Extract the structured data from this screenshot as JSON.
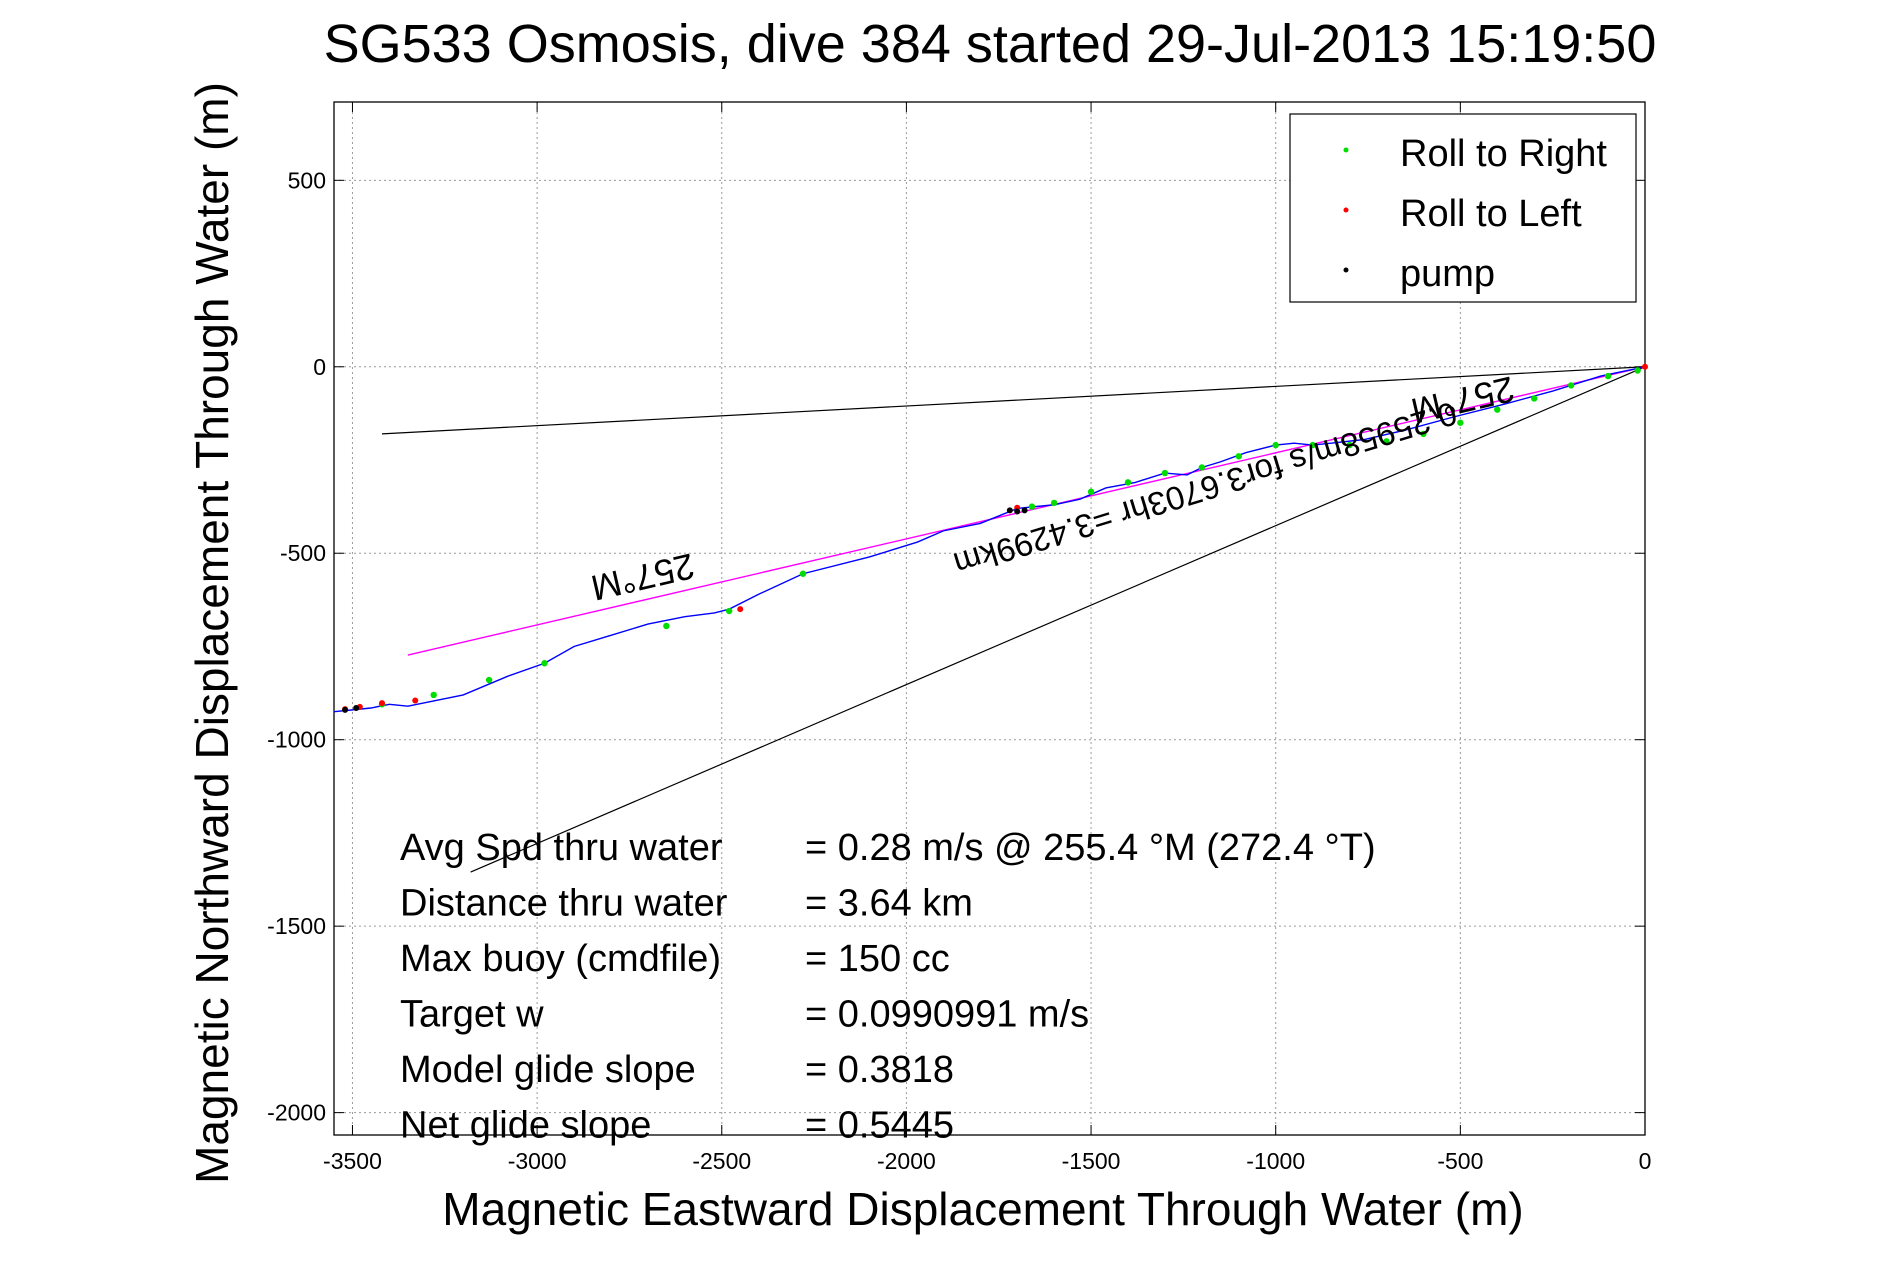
{
  "chart_data": {
    "type": "line",
    "title": "SG533 Osmosis, dive 384 started 29-Jul-2013 15:19:50",
    "xlabel": "Magnetic Eastward Displacement Through Water (m)",
    "ylabel": "Magnetic Northward Displacement Through Water (m)",
    "xlim": [
      -3550,
      0
    ],
    "ylim": [
      -2060,
      710
    ],
    "xticks": [
      -3500,
      -3000,
      -2500,
      -2000,
      -1500,
      -1000,
      -500,
      0
    ],
    "yticks": [
      500,
      0,
      -500,
      -1000,
      -1500,
      -2000
    ],
    "grid": true,
    "legend_position": "top-right",
    "legend": [
      {
        "label": "Roll to Right",
        "color": "#00dd00"
      },
      {
        "label": "Roll to Left",
        "color": "#ff0000"
      },
      {
        "label": "pump",
        "color": "#000000"
      }
    ],
    "track": {
      "color": "#0000ff",
      "x": [
        0,
        -120,
        -250,
        -380,
        -520,
        -650,
        -760,
        -850,
        -900,
        -950,
        -1000,
        -1080,
        -1150,
        -1200,
        -1240,
        -1300,
        -1380,
        -1460,
        -1530,
        -1600,
        -1700,
        -1800,
        -1900,
        -1970,
        -2100,
        -2280,
        -2400,
        -2480,
        -2520,
        -2600,
        -2700,
        -2800,
        -2900,
        -2980,
        -3080,
        -3200,
        -3300,
        -3350,
        -3400,
        -3450,
        -3500,
        -3550
      ],
      "y": [
        0,
        -25,
        -65,
        -100,
        -135,
        -170,
        -195,
        -205,
        -210,
        -205,
        -210,
        -230,
        -255,
        -270,
        -290,
        -285,
        -310,
        -325,
        -355,
        -370,
        -380,
        -420,
        -440,
        -470,
        -510,
        -555,
        -610,
        -650,
        -660,
        -670,
        -690,
        -720,
        -750,
        -795,
        -830,
        -880,
        -900,
        -910,
        -905,
        -915,
        -920,
        -925
      ]
    },
    "roll_right": {
      "color": "#00dd00",
      "x": [
        -20,
        -100,
        -200,
        -300,
        -400,
        -500,
        -600,
        -700,
        -800,
        -900,
        -1000,
        -1100,
        -1200,
        -1300,
        -1400,
        -1500,
        -1600,
        -1660,
        -2280,
        -2480,
        -2650,
        -2980,
        -3130,
        -3280,
        -3420
      ],
      "y": [
        -10,
        -25,
        -50,
        -85,
        -115,
        -150,
        -180,
        -200,
        -210,
        -210,
        -210,
        -240,
        -270,
        -285,
        -310,
        -335,
        -365,
        -375,
        -555,
        -655,
        -695,
        -795,
        -840,
        -880,
        -905
      ]
    },
    "roll_left": {
      "color": "#ff0000",
      "x": [
        0,
        -1700,
        -2450,
        -3330,
        -3420,
        -3480,
        -3520
      ],
      "y": [
        0,
        -378,
        -650,
        -895,
        -902,
        -912,
        -918
      ]
    },
    "pump": {
      "color": "#000000",
      "x": [
        -1680,
        -1700,
        -1720,
        -3490,
        -3520
      ],
      "y": [
        -385,
        -388,
        -385,
        -915,
        -920
      ]
    },
    "heading_line": {
      "color": "#ff00ff",
      "x": [
        0,
        -3350
      ],
      "y": [
        0,
        -773
      ],
      "label": "257°M"
    },
    "reference_lines": [
      {
        "color": "#000000",
        "x": [
          0,
          -3420
        ],
        "y": [
          0,
          -180
        ],
        "label": "257°M"
      },
      {
        "color": "#000000",
        "x": [
          0,
          -3180
        ],
        "y": [
          0,
          -1355
        ],
        "label": "0.25958m/s for3.6703hr =3.4299km"
      }
    ],
    "annotations": [
      {
        "name": "Avg Spd thru water",
        "value": "=  0.28 m/s @ 255.4 °M (272.4 °T)"
      },
      {
        "name": "Distance thru water",
        "value": "=  3.64 km"
      },
      {
        "name": "Max buoy (cmdfile)",
        "value": "= 150 cc"
      },
      {
        "name": "Target w",
        "value": "= 0.0990991 m/s"
      },
      {
        "name": "Model glide slope",
        "value": "= 0.3818"
      },
      {
        "name": "Net glide slope",
        "value": "= 0.5445"
      }
    ]
  }
}
